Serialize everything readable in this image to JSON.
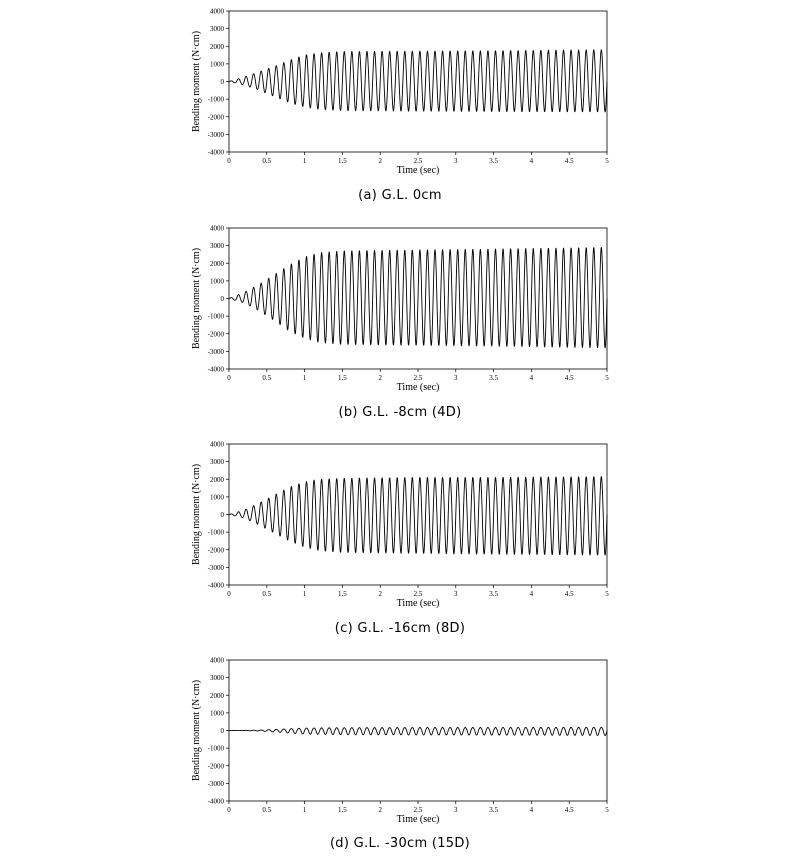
{
  "chart_data": [
    {
      "type": "line",
      "caption": "(a) G.L. 0cm",
      "xlabel": "Time (sec)",
      "ylabel": "Bending moment (N·cm)",
      "xlim": [
        0,
        5
      ],
      "ylim": [
        -4000,
        4000
      ],
      "x_ticks": [
        "0",
        "0.5",
        "1",
        "1.5",
        "2",
        "2.5",
        "3",
        "3.5",
        "4",
        "4.5",
        "5"
      ],
      "y_ticks": [
        "4000",
        "3000",
        "2000",
        "1000",
        "0",
        "-1000",
        "-2000",
        "-3000",
        "-4000"
      ],
      "series": [
        {
          "color": "#000000",
          "waveform": "ramped sinusoid",
          "frequency_hz": 10,
          "envelope": [
            {
              "t": 0,
              "pos": 0,
              "neg": 0
            },
            {
              "t": 0.2,
              "pos": 250,
              "neg": -200
            },
            {
              "t": 0.4,
              "pos": 550,
              "neg": -500
            },
            {
              "t": 0.6,
              "pos": 850,
              "neg": -850
            },
            {
              "t": 0.8,
              "pos": 1200,
              "neg": -1200
            },
            {
              "t": 1.0,
              "pos": 1500,
              "neg": -1450
            },
            {
              "t": 1.2,
              "pos": 1620,
              "neg": -1580
            },
            {
              "t": 1.5,
              "pos": 1700,
              "neg": -1650
            },
            {
              "t": 2.5,
              "pos": 1720,
              "neg": -1680
            },
            {
              "t": 3.5,
              "pos": 1740,
              "neg": -1700
            },
            {
              "t": 5.0,
              "pos": 1800,
              "neg": -1720
            }
          ]
        }
      ]
    },
    {
      "type": "line",
      "caption": "(b)  G.L. -8cm (4D)",
      "xlabel": "Time (sec)",
      "ylabel": "Bending moment (N·cm)",
      "xlim": [
        0,
        5
      ],
      "ylim": [
        -4000,
        4000
      ],
      "x_ticks": [
        "0",
        "0.5",
        "1",
        "1.5",
        "2",
        "2.5",
        "3",
        "3.5",
        "4",
        "4.5",
        "5"
      ],
      "y_ticks": [
        "4000",
        "3000",
        "2000",
        "1000",
        "0",
        "-1000",
        "-2000",
        "-3000",
        "-4000"
      ],
      "series": [
        {
          "color": "#000000",
          "waveform": "ramped sinusoid",
          "frequency_hz": 10,
          "envelope": [
            {
              "t": 0,
              "pos": 0,
              "neg": 0
            },
            {
              "t": 0.2,
              "pos": 350,
              "neg": -250
            },
            {
              "t": 0.4,
              "pos": 800,
              "neg": -700
            },
            {
              "t": 0.6,
              "pos": 1350,
              "neg": -1250
            },
            {
              "t": 0.8,
              "pos": 1900,
              "neg": -1850
            },
            {
              "t": 1.0,
              "pos": 2350,
              "neg": -2250
            },
            {
              "t": 1.2,
              "pos": 2600,
              "neg": -2500
            },
            {
              "t": 1.5,
              "pos": 2700,
              "neg": -2600
            },
            {
              "t": 2.5,
              "pos": 2750,
              "neg": -2650
            },
            {
              "t": 3.5,
              "pos": 2800,
              "neg": -2700
            },
            {
              "t": 5.0,
              "pos": 2900,
              "neg": -2800
            }
          ]
        }
      ]
    },
    {
      "type": "line",
      "caption": "(c) G.L. -16cm (8D)",
      "xlabel": "Time (sec)",
      "ylabel": "Bending moment (N·cm)",
      "xlim": [
        0,
        5
      ],
      "ylim": [
        -4000,
        4000
      ],
      "x_ticks": [
        "0",
        "0.5",
        "1",
        "1.5",
        "2",
        "2.5",
        "3",
        "3.5",
        "4",
        "4.5",
        "5"
      ],
      "y_ticks": [
        "4000",
        "3000",
        "2000",
        "1000",
        "0",
        "-1000",
        "-2000",
        "-3000",
        "-4000"
      ],
      "series": [
        {
          "color": "#000000",
          "waveform": "ramped sinusoid",
          "frequency_hz": 10,
          "envelope": [
            {
              "t": 0,
              "pos": 0,
              "neg": 0
            },
            {
              "t": 0.2,
              "pos": 250,
              "neg": -200
            },
            {
              "t": 0.4,
              "pos": 650,
              "neg": -600
            },
            {
              "t": 0.6,
              "pos": 1100,
              "neg": -1050
            },
            {
              "t": 0.8,
              "pos": 1550,
              "neg": -1500
            },
            {
              "t": 1.0,
              "pos": 1850,
              "neg": -1850
            },
            {
              "t": 1.2,
              "pos": 2000,
              "neg": -2050
            },
            {
              "t": 1.5,
              "pos": 2050,
              "neg": -2150
            },
            {
              "t": 2.5,
              "pos": 2100,
              "neg": -2200
            },
            {
              "t": 3.5,
              "pos": 2100,
              "neg": -2250
            },
            {
              "t": 5.0,
              "pos": 2150,
              "neg": -2300
            }
          ]
        }
      ]
    },
    {
      "type": "line",
      "caption": "(d) G.L. -30cm (15D)",
      "xlabel": "Time (sec)",
      "ylabel": "Bending moment (N·cm)",
      "xlim": [
        0,
        5
      ],
      "ylim": [
        -4000,
        4000
      ],
      "x_ticks": [
        "0",
        "0.5",
        "1",
        "1.5",
        "2",
        "2.5",
        "3",
        "3.5",
        "4",
        "4.5",
        "5"
      ],
      "y_ticks": [
        "4000",
        "3000",
        "2000",
        "1000",
        "0",
        "-1000",
        "-2000",
        "-3000",
        "-4000"
      ],
      "series": [
        {
          "color": "#000000",
          "waveform": "ramped sinusoid",
          "frequency_hz": 10,
          "envelope": [
            {
              "t": 0,
              "pos": 0,
              "neg": 0
            },
            {
              "t": 0.2,
              "pos": 10,
              "neg": -10
            },
            {
              "t": 0.4,
              "pos": 25,
              "neg": -30
            },
            {
              "t": 0.6,
              "pos": 60,
              "neg": -80
            },
            {
              "t": 0.8,
              "pos": 100,
              "neg": -150
            },
            {
              "t": 1.0,
              "pos": 140,
              "neg": -200
            },
            {
              "t": 1.5,
              "pos": 160,
              "neg": -240
            },
            {
              "t": 2.5,
              "pos": 170,
              "neg": -250
            },
            {
              "t": 3.5,
              "pos": 170,
              "neg": -260
            },
            {
              "t": 5.0,
              "pos": 180,
              "neg": -280
            }
          ]
        }
      ]
    }
  ]
}
